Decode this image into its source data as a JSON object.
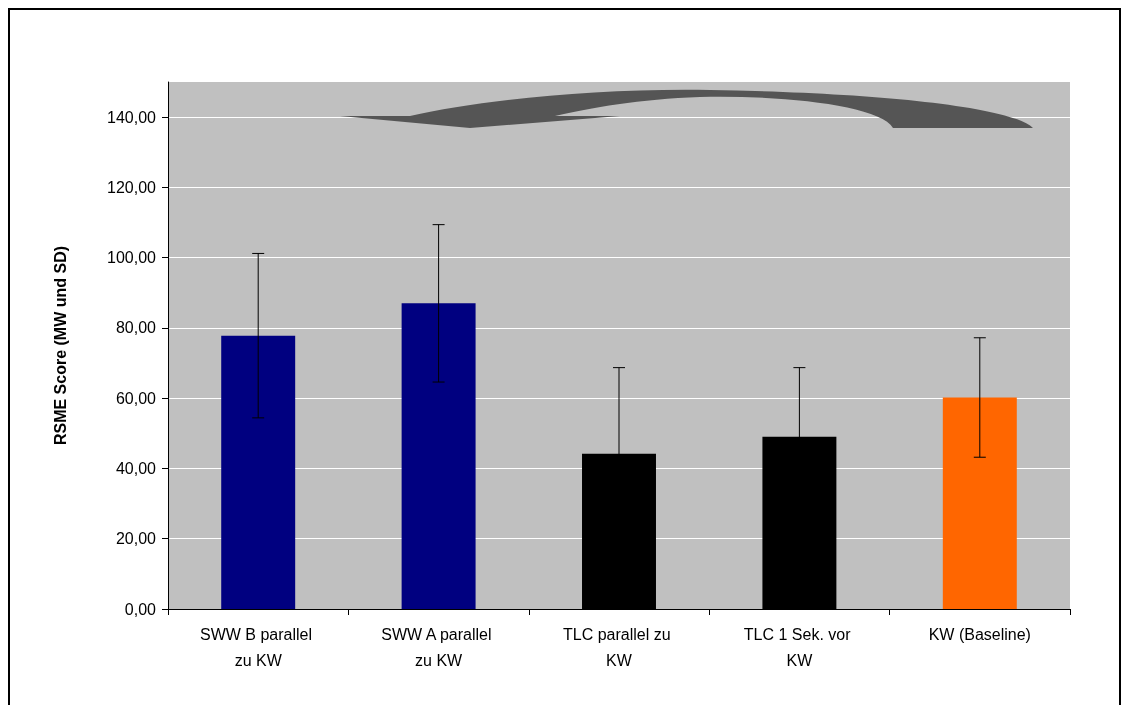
{
  "chart_data": {
    "type": "bar",
    "ylabel": "RSME Score (MW und SD)",
    "categories": [
      "SWW B parallel zu KW",
      "SWW A parallel zu KW",
      "TLC parallel zu KW",
      "TLC 1 Sek. vor KW",
      "KW (Baseline)"
    ],
    "values": [
      77.8,
      87.0,
      44.2,
      49.0,
      60.2
    ],
    "errors": [
      23.4,
      22.4,
      24.5,
      19.7,
      17.0
    ],
    "colors": [
      "#000080",
      "#000080",
      "#000000",
      "#000000",
      "#ff6600"
    ],
    "ylim": [
      0,
      150
    ],
    "yticks": [
      {
        "value": 0,
        "label": "0,00"
      },
      {
        "value": 20,
        "label": "20,00"
      },
      {
        "value": 40,
        "label": "40,00"
      },
      {
        "value": 60,
        "label": "60,00"
      },
      {
        "value": 80,
        "label": "80,00"
      },
      {
        "value": 100,
        "label": "100,00"
      },
      {
        "value": 120,
        "label": "120,00"
      },
      {
        "value": 140,
        "label": "140,00"
      }
    ],
    "grid": "y"
  }
}
